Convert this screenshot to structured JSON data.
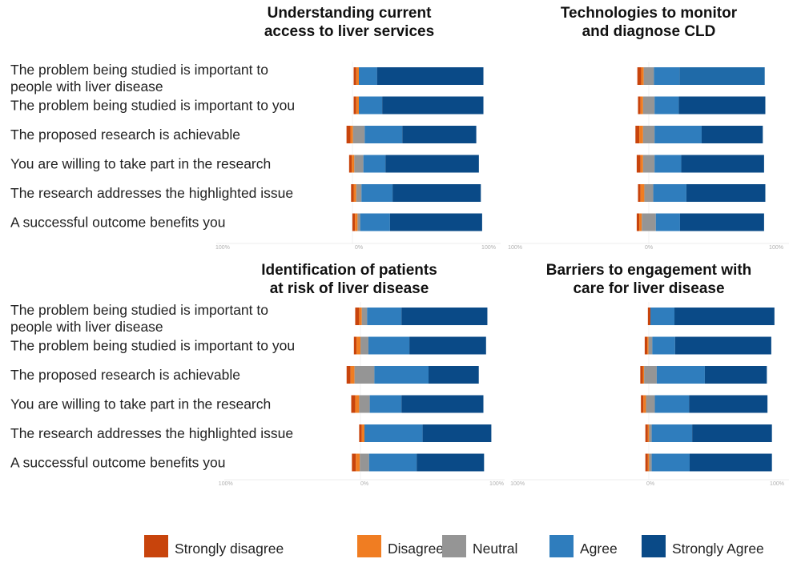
{
  "chart_data": {
    "type": "bar",
    "subtype": "diverging-stacked-horizontal",
    "legend": {
      "placement": "bottom",
      "entries": [
        {
          "key": "strongly_disagree",
          "label": "Strongly disagree",
          "color": "#c8440c"
        },
        {
          "key": "disagree",
          "label": "Disagree",
          "color": "#f07d22"
        },
        {
          "key": "neutral",
          "label": "Neutral",
          "color": "#959595"
        },
        {
          "key": "agree",
          "label": "Agree",
          "color": "#2f7dbd"
        },
        {
          "key": "strongly_agree",
          "label": "Strongly Agree",
          "color": "#0a4a87"
        }
      ]
    },
    "categories": [
      "The problem being studied is important to people with liver disease",
      "The problem being studied is important to you",
      "The proposed research is achievable",
      "You are willing to take part in the research",
      "The research addresses the highlighted issue",
      "A successful outcome benefits you"
    ],
    "category_lines": [
      [
        "The problem being studied is important to",
        "people with liver disease"
      ],
      [
        "The problem being studied is important to you"
      ],
      [
        "The proposed research is achievable"
      ],
      [
        "You are willing to take part in the research"
      ],
      [
        "The research addresses the highlighted issue"
      ],
      [
        "A successful outcome benefits you"
      ]
    ],
    "axis": {
      "ticks": [
        "100%",
        "0%",
        "100%"
      ],
      "xlim": [
        -100,
        100
      ],
      "unit": "%"
    },
    "panels": [
      {
        "title_lines": [
          "Understanding current",
          "access to liver services"
        ],
        "rows": [
          {
            "strongly_disagree": 2,
            "disagree": 2,
            "neutral": 0,
            "agree": 14,
            "strongly_agree": 82
          },
          {
            "strongly_disagree": 2,
            "disagree": 2,
            "neutral": 0,
            "agree": 18,
            "strongly_agree": 78
          },
          {
            "strongly_disagree": 3,
            "disagree": 2,
            "neutral": 9,
            "agree": 29,
            "strongly_agree": 57
          },
          {
            "strongly_disagree": 2,
            "disagree": 2,
            "neutral": 7,
            "agree": 17,
            "strongly_agree": 72
          },
          {
            "strongly_disagree": 2,
            "disagree": 2,
            "neutral": 4,
            "agree": 24,
            "strongly_agree": 68
          },
          {
            "strongly_disagree": 2,
            "disagree": 2,
            "neutral": 2,
            "agree": 23,
            "strongly_agree": 71
          }
        ]
      },
      {
        "title_lines": [
          "Technologies to monitor",
          "and diagnose CLD"
        ],
        "highlight_row": 0,
        "rows": [
          {
            "strongly_disagree": 3,
            "disagree": 2,
            "neutral": 8,
            "agree": 20,
            "strongly_agree": 67
          },
          {
            "strongly_disagree": 2,
            "disagree": 2,
            "neutral": 9,
            "agree": 19,
            "strongly_agree": 68
          },
          {
            "strongly_disagree": 3,
            "disagree": 3,
            "neutral": 9,
            "agree": 37,
            "strongly_agree": 48
          },
          {
            "strongly_disagree": 3,
            "disagree": 2,
            "neutral": 9,
            "agree": 21,
            "strongly_agree": 65
          },
          {
            "strongly_disagree": 2,
            "disagree": 3,
            "neutral": 7,
            "agree": 26,
            "strongly_agree": 62
          },
          {
            "strongly_disagree": 2,
            "disagree": 2,
            "neutral": 11,
            "agree": 19,
            "strongly_agree": 66
          }
        ]
      },
      {
        "title_lines": [
          "Identification of patients",
          "at risk of liver disease"
        ],
        "rows": [
          {
            "strongly_disagree": 3,
            "disagree": 2,
            "neutral": 4,
            "agree": 26,
            "strongly_agree": 65
          },
          {
            "strongly_disagree": 2,
            "disagree": 3,
            "neutral": 6,
            "agree": 31,
            "strongly_agree": 58
          },
          {
            "strongly_disagree": 3,
            "disagree": 3,
            "neutral": 15,
            "agree": 41,
            "strongly_agree": 38
          },
          {
            "strongly_disagree": 3,
            "disagree": 3,
            "neutral": 8,
            "agree": 24,
            "strongly_agree": 62
          },
          {
            "strongly_disagree": 2,
            "disagree": 2,
            "neutral": 0,
            "agree": 44,
            "strongly_agree": 52
          },
          {
            "strongly_disagree": 3,
            "disagree": 3,
            "neutral": 7,
            "agree": 36,
            "strongly_agree": 51
          }
        ]
      },
      {
        "title_lines": [
          "Barriers to engagement with",
          "care for liver disease"
        ],
        "rows": [
          {
            "strongly_disagree": 2,
            "disagree": 0,
            "neutral": 0,
            "agree": 19,
            "strongly_agree": 79
          },
          {
            "strongly_disagree": 2,
            "disagree": 1,
            "neutral": 3,
            "agree": 18,
            "strongly_agree": 76
          },
          {
            "strongly_disagree": 2,
            "disagree": 1,
            "neutral": 10,
            "agree": 38,
            "strongly_agree": 49
          },
          {
            "strongly_disagree": 2,
            "disagree": 2,
            "neutral": 7,
            "agree": 27,
            "strongly_agree": 62
          },
          {
            "strongly_disagree": 2,
            "disagree": 1,
            "neutral": 2,
            "agree": 32,
            "strongly_agree": 63
          },
          {
            "strongly_disagree": 2,
            "disagree": 1,
            "neutral": 2,
            "agree": 30,
            "strongly_agree": 65
          }
        ]
      }
    ]
  }
}
